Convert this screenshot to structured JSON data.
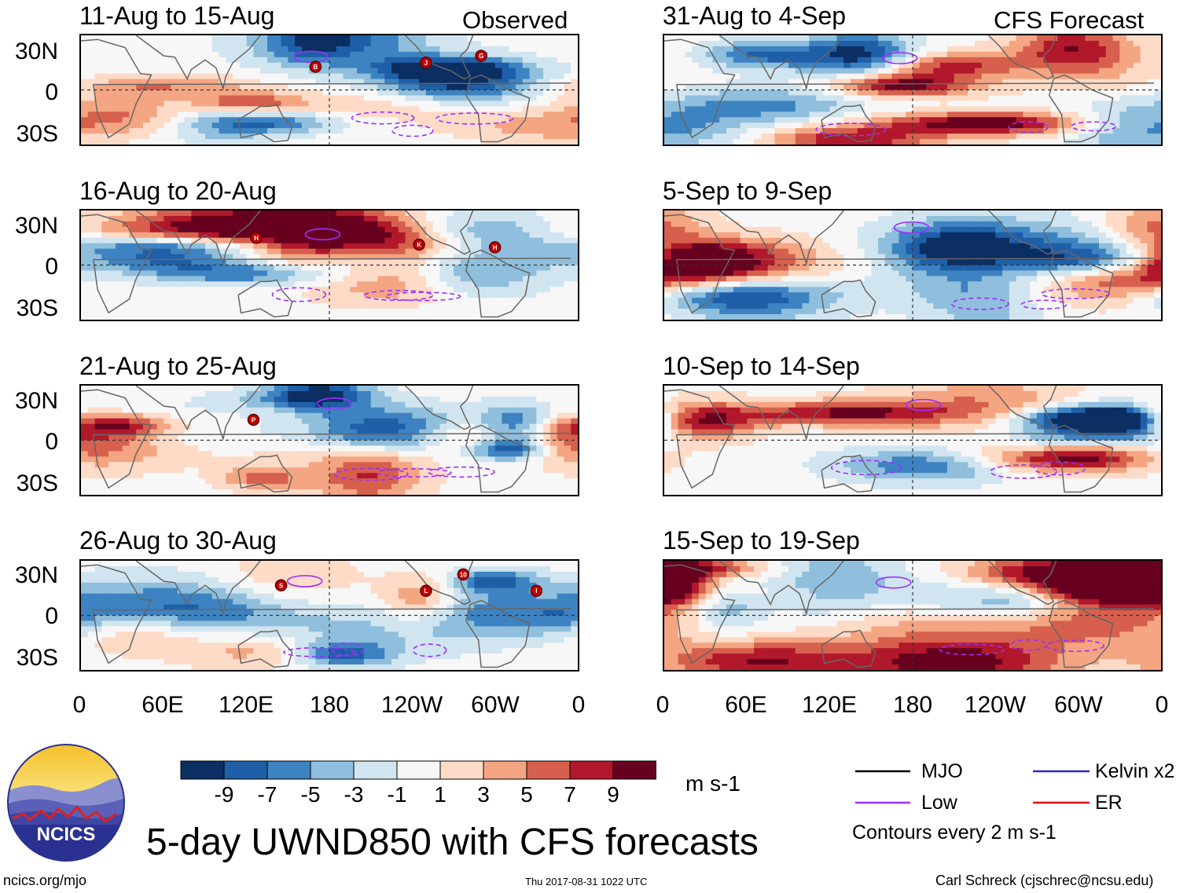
{
  "figure": {
    "title": "5-day UWND850 with CFS forecasts",
    "footer_left": "ncics.org/mjo",
    "footer_center": "Thu 2017-08-31 1022 UTC",
    "footer_right": "Carl Schreck (cjschrec@ncsu.edu)",
    "logo_text": "NCICS"
  },
  "chart_data": {
    "type": "heatmap",
    "variable": "UWND850",
    "units": "m s-1",
    "columns": [
      {
        "label": "Observed",
        "panels": [
          "11-Aug to 15-Aug",
          "16-Aug to 20-Aug",
          "21-Aug to 25-Aug",
          "26-Aug to 30-Aug"
        ]
      },
      {
        "label": "CFS Forecast",
        "panels": [
          "31-Aug to 4-Sep",
          "5-Sep to 9-Sep",
          "10-Sep to 14-Sep",
          "15-Sep to 19-Sep"
        ]
      }
    ],
    "y_ticks": [
      "30N",
      "0",
      "30S"
    ],
    "y_tick_values": [
      30,
      0,
      -30
    ],
    "x_ticks": [
      "0",
      "60E",
      "120E",
      "180",
      "120W",
      "60W",
      "0"
    ],
    "x_tick_values": [
      0,
      60,
      120,
      180,
      240,
      300,
      360
    ],
    "xlim": [
      0,
      360
    ],
    "ylim": [
      -40,
      40
    ],
    "colorbar": {
      "labels": [
        "-9",
        "-7",
        "-5",
        "-3",
        "-1",
        "1",
        "3",
        "5",
        "7",
        "9"
      ],
      "levels": [
        -9,
        -7,
        -5,
        -3,
        -1,
        1,
        3,
        5,
        7,
        9
      ],
      "colors": [
        "#0b2e63",
        "#1f5fa8",
        "#3d83c2",
        "#8fbfdc",
        "#d1e5f0",
        "#f7f7f7",
        "#fddbc7",
        "#f4a582",
        "#d6604d",
        "#b2182b",
        "#67001f"
      ],
      "units": "m s-1"
    },
    "legend": {
      "entries": [
        {
          "label": "MJO",
          "color": "#000000"
        },
        {
          "label": "Kelvin x2",
          "color": "#2a2ad0"
        },
        {
          "label": "Low",
          "color": "#9b30ff"
        },
        {
          "label": "ER",
          "color": "#e01010"
        }
      ],
      "note": "Contours every 2 m s-1"
    },
    "storm_markers": [
      {
        "panel": 0,
        "label": "B",
        "lon": 170,
        "lat": 17
      },
      {
        "panel": 0,
        "label": "J",
        "lon": 250,
        "lat": 20
      },
      {
        "panel": 0,
        "label": "G",
        "lon": 290,
        "lat": 25
      },
      {
        "panel": 1,
        "label": "H",
        "lon": 127,
        "lat": 20
      },
      {
        "panel": 1,
        "label": "K",
        "lon": 245,
        "lat": 15
      },
      {
        "panel": 1,
        "label": "H",
        "lon": 300,
        "lat": 13
      },
      {
        "panel": 2,
        "label": "P",
        "lon": 125,
        "lat": 15
      },
      {
        "panel": 3,
        "label": "S",
        "lon": 145,
        "lat": 22
      },
      {
        "panel": 3,
        "label": "L",
        "lon": 250,
        "lat": 18
      },
      {
        "panel": 3,
        "label": "10",
        "lon": 277,
        "lat": 30
      },
      {
        "panel": 3,
        "label": "I",
        "lon": 330,
        "lat": 18
      }
    ]
  }
}
